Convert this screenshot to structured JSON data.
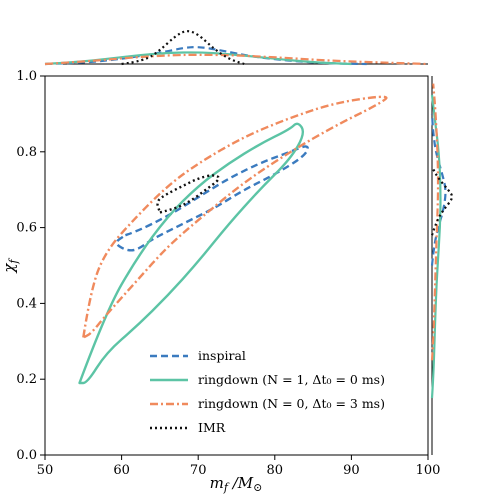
{
  "chart_data": {
    "type": "contour",
    "xlabel": "m_f / M_⊙",
    "ylabel": "χ_f",
    "xlim": [
      50,
      100
    ],
    "ylim": [
      0.0,
      1.0
    ],
    "xticks": [
      "50",
      "60",
      "70",
      "80",
      "90",
      "100"
    ],
    "yticks": [
      "0.0",
      "0.2",
      "0.4",
      "0.6",
      "0.8",
      "1.0"
    ],
    "legend_position": "lower-right",
    "series": [
      {
        "name": "inspiral",
        "color": "#3b7bbf",
        "linestyle": "dashed",
        "contour": [
          [
            60.5,
            0.58
          ],
          [
            62,
            0.59
          ],
          [
            66,
            0.63
          ],
          [
            70,
            0.68
          ],
          [
            74,
            0.73
          ],
          [
            78,
            0.77
          ],
          [
            82,
            0.8
          ],
          [
            84.5,
            0.82
          ],
          [
            84,
            0.79
          ],
          [
            80,
            0.74
          ],
          [
            76,
            0.7
          ],
          [
            72,
            0.65
          ],
          [
            68,
            0.61
          ],
          [
            64,
            0.57
          ],
          [
            62,
            0.54
          ],
          [
            60.5,
            0.54
          ],
          [
            59,
            0.56
          ],
          [
            60.5,
            0.58
          ]
        ],
        "marginal_x": [
          [
            50,
            0.0
          ],
          [
            55,
            0.02
          ],
          [
            60,
            0.08
          ],
          [
            65,
            0.18
          ],
          [
            68,
            0.26
          ],
          [
            70,
            0.28
          ],
          [
            73,
            0.22
          ],
          [
            77,
            0.12
          ],
          [
            82,
            0.05
          ],
          [
            87,
            0.01
          ],
          [
            92,
            0.0
          ]
        ],
        "marginal_y": [
          [
            0.5,
            0.0
          ],
          [
            0.55,
            0.03
          ],
          [
            0.6,
            0.1
          ],
          [
            0.65,
            0.19
          ],
          [
            0.7,
            0.23
          ],
          [
            0.75,
            0.15
          ],
          [
            0.8,
            0.06
          ],
          [
            0.85,
            0.02
          ],
          [
            0.9,
            0.0
          ]
        ]
      },
      {
        "name": "ringdown (N = 1, Δt₀ = 0 ms)",
        "color": "#5cc4a5",
        "linestyle": "solid",
        "contour": [
          [
            54.5,
            0.19
          ],
          [
            58,
            0.38
          ],
          [
            62,
            0.52
          ],
          [
            66,
            0.63
          ],
          [
            70,
            0.71
          ],
          [
            74,
            0.77
          ],
          [
            78,
            0.82
          ],
          [
            82,
            0.86
          ],
          [
            83,
            0.88
          ],
          [
            84,
            0.85
          ],
          [
            82,
            0.78
          ],
          [
            78,
            0.7
          ],
          [
            74,
            0.61
          ],
          [
            70,
            0.51
          ],
          [
            66,
            0.42
          ],
          [
            62,
            0.34
          ],
          [
            58,
            0.27
          ],
          [
            55.5,
            0.19
          ],
          [
            54.5,
            0.19
          ]
        ],
        "marginal_x": [
          [
            50,
            0.0
          ],
          [
            54,
            0.03
          ],
          [
            58,
            0.08
          ],
          [
            62,
            0.14
          ],
          [
            66,
            0.18
          ],
          [
            70,
            0.19
          ],
          [
            74,
            0.16
          ],
          [
            78,
            0.11
          ],
          [
            82,
            0.06
          ],
          [
            86,
            0.02
          ],
          [
            90,
            0.0
          ]
        ],
        "marginal_y": [
          [
            0.15,
            0.0
          ],
          [
            0.2,
            0.02
          ],
          [
            0.3,
            0.04
          ],
          [
            0.4,
            0.06
          ],
          [
            0.5,
            0.09
          ],
          [
            0.6,
            0.13
          ],
          [
            0.7,
            0.14
          ],
          [
            0.8,
            0.11
          ],
          [
            0.88,
            0.05
          ],
          [
            0.95,
            0.0
          ]
        ]
      },
      {
        "name": "ringdown (N = 0, Δt₀ = 3 ms)",
        "color": "#f08a5d",
        "linestyle": "dashdot",
        "contour": [
          [
            55,
            0.31
          ],
          [
            56,
            0.44
          ],
          [
            58,
            0.54
          ],
          [
            62,
            0.63
          ],
          [
            66,
            0.71
          ],
          [
            70,
            0.77
          ],
          [
            76,
            0.84
          ],
          [
            82,
            0.89
          ],
          [
            88,
            0.93
          ],
          [
            95,
            0.95
          ],
          [
            94,
            0.93
          ],
          [
            88,
            0.87
          ],
          [
            82,
            0.8
          ],
          [
            76,
            0.72
          ],
          [
            70,
            0.62
          ],
          [
            66,
            0.55
          ],
          [
            62,
            0.46
          ],
          [
            58,
            0.37
          ],
          [
            56,
            0.32
          ],
          [
            55,
            0.31
          ]
        ],
        "marginal_x": [
          [
            50,
            0.0
          ],
          [
            54,
            0.03
          ],
          [
            58,
            0.07
          ],
          [
            62,
            0.11
          ],
          [
            66,
            0.14
          ],
          [
            70,
            0.15
          ],
          [
            75,
            0.14
          ],
          [
            80,
            0.11
          ],
          [
            85,
            0.07
          ],
          [
            90,
            0.04
          ],
          [
            95,
            0.02
          ],
          [
            100,
            0.0
          ]
        ],
        "marginal_y": [
          [
            0.25,
            0.0
          ],
          [
            0.3,
            0.02
          ],
          [
            0.4,
            0.04
          ],
          [
            0.5,
            0.06
          ],
          [
            0.6,
            0.08
          ],
          [
            0.7,
            0.1
          ],
          [
            0.8,
            0.09
          ],
          [
            0.9,
            0.06
          ],
          [
            0.98,
            0.02
          ]
        ]
      },
      {
        "name": "IMR",
        "color": "#111111",
        "linestyle": "dotted",
        "contour": [
          [
            65,
            0.64
          ],
          [
            67,
            0.65
          ],
          [
            69,
            0.67
          ],
          [
            71,
            0.7
          ],
          [
            73,
            0.73
          ],
          [
            72,
            0.74
          ],
          [
            70,
            0.73
          ],
          [
            68,
            0.71
          ],
          [
            66,
            0.69
          ],
          [
            64.5,
            0.67
          ],
          [
            65,
            0.64
          ]
        ],
        "marginal_x": [
          [
            60,
            0.0
          ],
          [
            63,
            0.05
          ],
          [
            65,
            0.22
          ],
          [
            67,
            0.45
          ],
          [
            68.5,
            0.55
          ],
          [
            70,
            0.48
          ],
          [
            72,
            0.25
          ],
          [
            74,
            0.08
          ],
          [
            76,
            0.0
          ]
        ],
        "marginal_y": [
          [
            0.58,
            0.0
          ],
          [
            0.62,
            0.08
          ],
          [
            0.65,
            0.2
          ],
          [
            0.68,
            0.35
          ],
          [
            0.7,
            0.26
          ],
          [
            0.73,
            0.1
          ],
          [
            0.76,
            0.0
          ]
        ]
      }
    ]
  }
}
